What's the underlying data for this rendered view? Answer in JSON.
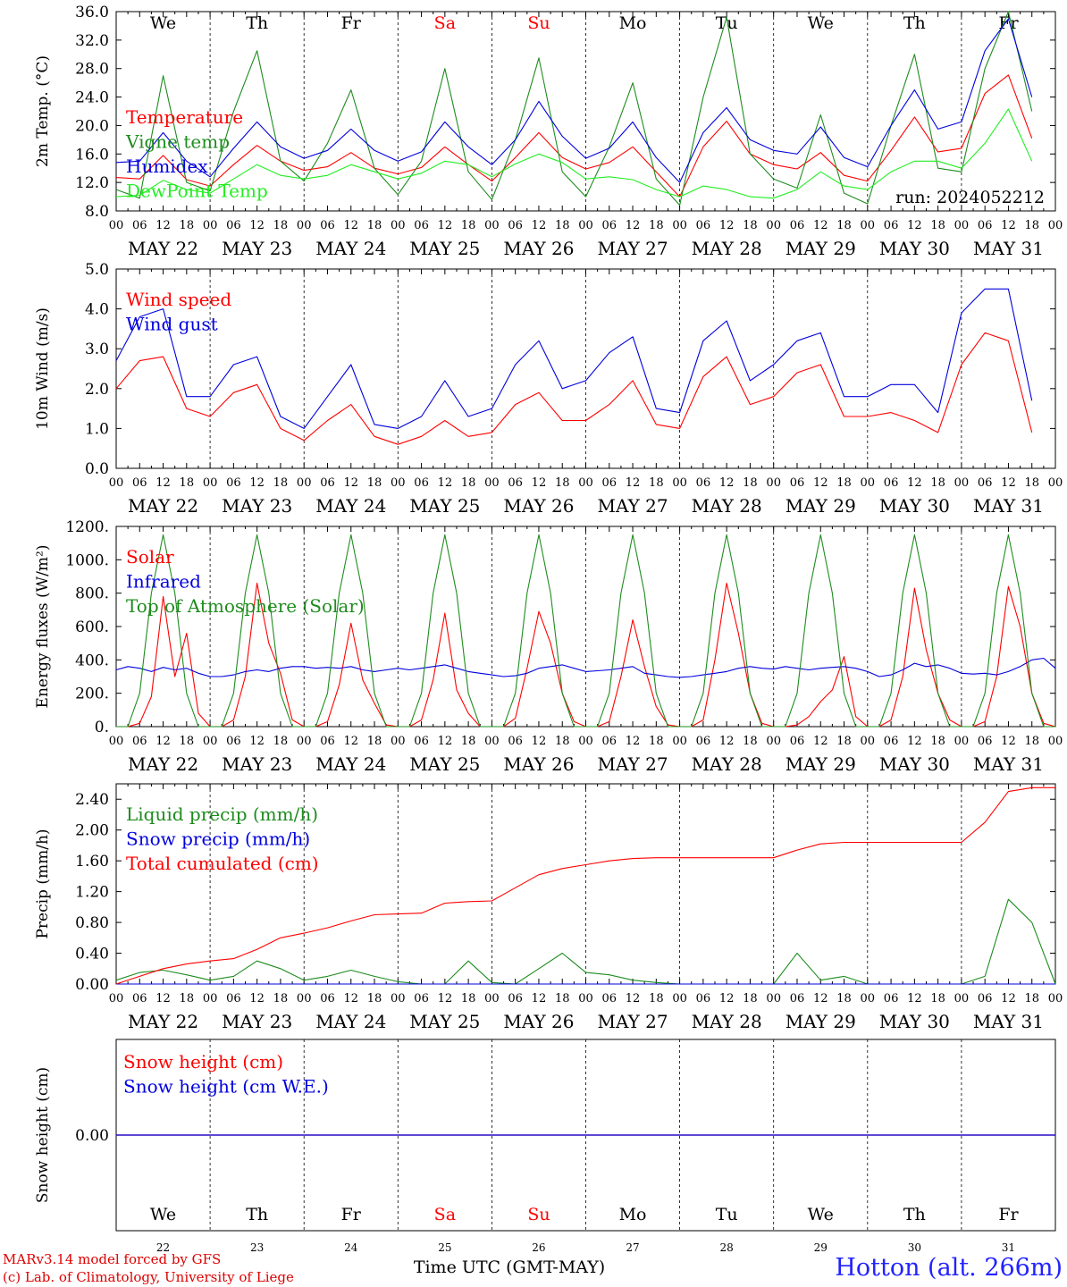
{
  "run_label": "run: 2024052212",
  "credits": [
    "MARv3.14 model forced by GFS",
    "(c) Lab. of Climatology, University of Liege"
  ],
  "station": "Hotton (alt. 266m)",
  "time_axis_label": "Time UTC (GMT-MAY)",
  "hour_ticks": [
    "00",
    "06",
    "12",
    "18"
  ],
  "final_tick": "00",
  "dates": [
    "MAY 22",
    "MAY 23",
    "MAY 24",
    "MAY 25",
    "MAY 26",
    "MAY 27",
    "MAY 28",
    "MAY 29",
    "MAY 30",
    "MAY 31"
  ],
  "day_numbers": [
    "22",
    "23",
    "24",
    "25",
    "26",
    "27",
    "28",
    "29",
    "30",
    "31"
  ],
  "weekdays": [
    {
      "label": "We",
      "color": "#000000"
    },
    {
      "label": "Th",
      "color": "#000000"
    },
    {
      "label": "Fr",
      "color": "#000000"
    },
    {
      "label": "Sa",
      "color": "#ff0000"
    },
    {
      "label": "Su",
      "color": "#ff0000"
    },
    {
      "label": "Mo",
      "color": "#000000"
    },
    {
      "label": "Tu",
      "color": "#000000"
    },
    {
      "label": "We",
      "color": "#000000"
    },
    {
      "label": "Th",
      "color": "#000000"
    },
    {
      "label": "Fr",
      "color": "#000000"
    }
  ],
  "chart_data": [
    {
      "type": "line",
      "ylabel": "2m Temp. (°C)",
      "ylim": [
        8,
        36
      ],
      "yticks": [
        "8.0",
        "12.0",
        "16.0",
        "20.0",
        "24.0",
        "28.0",
        "32.0",
        "36.0"
      ],
      "legend_placement": "top-left",
      "x_hours": [
        0,
        6,
        12,
        18,
        24,
        30,
        36,
        42,
        48,
        54,
        60,
        66,
        72,
        78,
        84,
        90,
        96,
        102,
        108,
        114,
        120,
        126,
        132,
        138,
        144,
        150,
        156,
        162,
        168,
        174,
        180,
        186,
        192,
        198,
        204,
        210,
        216,
        222,
        228,
        234
      ],
      "series": [
        {
          "name": "Temperature",
          "color": "#ff0000",
          "values": [
            12.7,
            12.5,
            15.8,
            12.4,
            11.5,
            14.5,
            17.2,
            15,
            13.7,
            14.2,
            16.2,
            14,
            13.2,
            14.1,
            17,
            14.5,
            12.2,
            15.5,
            19,
            15.5,
            13.9,
            14.8,
            17,
            13.5,
            10,
            17,
            20.6,
            16,
            14.5,
            13.9,
            16.2,
            13,
            12.2,
            16.5,
            21.2,
            16.3,
            16.8,
            24.5,
            27.1,
            18.2
          ]
        },
        {
          "name": "Vigne temp",
          "color": "#1e8c1e",
          "values": [
            11,
            9.8,
            27,
            12,
            10.8,
            22,
            30.5,
            15,
            12.2,
            17.5,
            25,
            14,
            10.3,
            15,
            28,
            13.5,
            9.6,
            18,
            29.5,
            13.5,
            10,
            17,
            26,
            12.5,
            8.8,
            24,
            35.2,
            16,
            12.5,
            11.2,
            21.5,
            10.5,
            9,
            20,
            30,
            14,
            13.5,
            28,
            36,
            22
          ]
        },
        {
          "name": "Humidex",
          "color": "#0000dd",
          "values": [
            14.8,
            15,
            19,
            15,
            12.8,
            16.8,
            20.5,
            17,
            15.4,
            16.5,
            19.5,
            16.5,
            15,
            16.3,
            20.5,
            17,
            14.5,
            18,
            23.4,
            18.5,
            15.4,
            16.8,
            20.5,
            15.5,
            12,
            19,
            22.5,
            18,
            16.5,
            16,
            19.8,
            15.5,
            14.2,
            20,
            25,
            19.5,
            20.5,
            30.5,
            35,
            24
          ]
        },
        {
          "name": "DewPoint Temp",
          "color": "#22ee22",
          "values": [
            10,
            10.2,
            12.3,
            11,
            10.5,
            12.5,
            14.5,
            13,
            12.5,
            13,
            14.5,
            13.5,
            12.5,
            13.3,
            15,
            14.5,
            12.8,
            14.6,
            16,
            14.8,
            12.5,
            12.8,
            12.4,
            11,
            10,
            11.5,
            11,
            10,
            9.8,
            11,
            13.5,
            11.5,
            11,
            13.5,
            15,
            15,
            14,
            17.5,
            22.3,
            15
          ]
        }
      ]
    },
    {
      "type": "line",
      "ylabel": "10m Wind (m/s)",
      "ylim": [
        0,
        5
      ],
      "yticks": [
        "0.0",
        "1.0",
        "2.0",
        "3.0",
        "4.0",
        "5.0"
      ],
      "legend_placement": "top-left",
      "x_hours": [
        0,
        6,
        12,
        18,
        24,
        30,
        36,
        42,
        48,
        54,
        60,
        66,
        72,
        78,
        84,
        90,
        96,
        102,
        108,
        114,
        120,
        126,
        132,
        138,
        144,
        150,
        156,
        162,
        168,
        174,
        180,
        186,
        192,
        198,
        204,
        210,
        216,
        222,
        228,
        234
      ],
      "series": [
        {
          "name": "Wind speed",
          "color": "#ff0000",
          "values": [
            2,
            2.7,
            2.8,
            1.5,
            1.3,
            1.9,
            2.1,
            1,
            0.7,
            1.2,
            1.6,
            0.8,
            0.6,
            0.8,
            1.2,
            0.8,
            0.9,
            1.6,
            1.9,
            1.2,
            1.2,
            1.6,
            2.2,
            1.1,
            1,
            2.3,
            2.8,
            1.6,
            1.8,
            2.4,
            2.6,
            1.3,
            1.3,
            1.4,
            1.2,
            0.9,
            2.6,
            3.4,
            3.2,
            0.9
          ]
        },
        {
          "name": "Wind gust",
          "color": "#0000dd",
          "values": [
            2.7,
            3.8,
            4,
            1.8,
            1.8,
            2.6,
            2.8,
            1.3,
            1,
            1.8,
            2.6,
            1.1,
            1,
            1.3,
            2.2,
            1.3,
            1.5,
            2.6,
            3.2,
            2,
            2.2,
            2.9,
            3.3,
            1.5,
            1.4,
            3.2,
            3.7,
            2.2,
            2.6,
            3.2,
            3.4,
            1.8,
            1.8,
            2.1,
            2.1,
            1.4,
            3.9,
            4.5,
            4.5,
            1.7
          ]
        }
      ]
    },
    {
      "type": "line",
      "ylabel": "Energy fluxes (W/m²)",
      "ylim": [
        0,
        1200
      ],
      "yticks": [
        "0.",
        "200.",
        "400.",
        "600.",
        "800.",
        "1000.",
        "1200."
      ],
      "legend_placement": "top-left",
      "x_hours": [
        0,
        3,
        6,
        9,
        12,
        15,
        18,
        21,
        24,
        27,
        30,
        33,
        36,
        39,
        42,
        45,
        48,
        51,
        54,
        57,
        60,
        63,
        66,
        69,
        72,
        75,
        78,
        81,
        84,
        87,
        90,
        93,
        96,
        99,
        102,
        105,
        108,
        111,
        114,
        117,
        120,
        123,
        126,
        129,
        132,
        135,
        138,
        141,
        144,
        147,
        150,
        153,
        156,
        159,
        162,
        165,
        168,
        171,
        174,
        177,
        180,
        183,
        186,
        189,
        192,
        195,
        198,
        201,
        204,
        207,
        210,
        213,
        216,
        219,
        222,
        225,
        228,
        231,
        234,
        237,
        240
      ],
      "series": [
        {
          "name": "Solar",
          "color": "#ff0000",
          "values": [
            0,
            0,
            20,
            180,
            780,
            300,
            560,
            80,
            0,
            0,
            40,
            300,
            860,
            500,
            320,
            40,
            0,
            0,
            30,
            250,
            620,
            280,
            140,
            10,
            0,
            0,
            40,
            280,
            680,
            220,
            80,
            0,
            0,
            0,
            50,
            350,
            690,
            500,
            200,
            30,
            0,
            0,
            30,
            300,
            640,
            360,
            120,
            10,
            0,
            0,
            40,
            400,
            860,
            560,
            200,
            20,
            0,
            0,
            10,
            60,
            150,
            220,
            420,
            60,
            0,
            0,
            40,
            300,
            830,
            460,
            200,
            40,
            0,
            0,
            30,
            300,
            840,
            600,
            200,
            20,
            0
          ]
        },
        {
          "name": "Infrared",
          "color": "#0000dd",
          "values": [
            340,
            360,
            350,
            330,
            355,
            340,
            350,
            320,
            300,
            300,
            310,
            330,
            340,
            330,
            350,
            360,
            360,
            350,
            355,
            350,
            360,
            340,
            330,
            340,
            350,
            340,
            350,
            360,
            370,
            350,
            330,
            320,
            310,
            300,
            305,
            320,
            350,
            360,
            370,
            350,
            330,
            335,
            340,
            350,
            360,
            320,
            310,
            300,
            295,
            300,
            310,
            320,
            330,
            350,
            360,
            350,
            345,
            360,
            350,
            340,
            350,
            355,
            360,
            350,
            330,
            300,
            310,
            340,
            380,
            360,
            370,
            350,
            320,
            315,
            320,
            310,
            330,
            360,
            400,
            410,
            350
          ]
        },
        {
          "name": "Top of Atmosphere (Solar)",
          "color": "#1e8c1e",
          "values": [
            0,
            0,
            200,
            800,
            1150,
            800,
            200,
            0,
            0,
            0,
            200,
            800,
            1150,
            800,
            200,
            0,
            0,
            0,
            200,
            800,
            1150,
            800,
            200,
            0,
            0,
            0,
            200,
            800,
            1150,
            800,
            200,
            0,
            0,
            0,
            200,
            800,
            1150,
            800,
            200,
            0,
            0,
            0,
            200,
            800,
            1150,
            800,
            200,
            0,
            0,
            0,
            200,
            800,
            1150,
            800,
            200,
            0,
            0,
            0,
            200,
            800,
            1150,
            800,
            200,
            0,
            0,
            0,
            200,
            800,
            1150,
            800,
            200,
            0,
            0,
            0,
            200,
            800,
            1150,
            800,
            200,
            0,
            0
          ]
        }
      ]
    },
    {
      "type": "line",
      "ylabel": "Precip (mm/h)",
      "ylim": [
        0,
        2.6
      ],
      "yticks": [
        "0.00",
        "0.40",
        "0.80",
        "1.20",
        "1.60",
        "2.00",
        "2.40"
      ],
      "legend_placement": "top-left",
      "x_hours": [
        0,
        6,
        12,
        18,
        24,
        30,
        36,
        42,
        48,
        54,
        60,
        66,
        72,
        78,
        84,
        90,
        96,
        102,
        108,
        114,
        120,
        126,
        132,
        138,
        144,
        150,
        156,
        162,
        168,
        174,
        180,
        186,
        192,
        198,
        204,
        210,
        216,
        222,
        228,
        234,
        240
      ],
      "series": [
        {
          "name": "Liquid precip (mm/h)",
          "color": "#1e8c1e",
          "values": [
            0.05,
            0.15,
            0.18,
            0.12,
            0.05,
            0.1,
            0.3,
            0.2,
            0.05,
            0.1,
            0.18,
            0.1,
            0.03,
            0,
            0,
            0.3,
            0.02,
            0,
            0.2,
            0.4,
            0.15,
            0.12,
            0.05,
            0.02,
            0,
            0,
            0,
            0,
            0,
            0.4,
            0.05,
            0.1,
            0,
            0,
            0,
            0,
            0,
            0.1,
            1.1,
            0.8,
            0
          ]
        },
        {
          "name": "Snow precip (mm/h)",
          "color": "#0000dd",
          "values": [
            0,
            0,
            0,
            0,
            0,
            0,
            0,
            0,
            0,
            0,
            0,
            0,
            0,
            0,
            0,
            0,
            0,
            0,
            0,
            0,
            0,
            0,
            0,
            0,
            0,
            0,
            0,
            0,
            0,
            0,
            0,
            0,
            0,
            0,
            0,
            0,
            0,
            0,
            0,
            0,
            0
          ]
        },
        {
          "name": "Total cumulated (cm)",
          "color": "#ff0000",
          "values": [
            0,
            0.1,
            0.2,
            0.26,
            0.3,
            0.33,
            0.45,
            0.6,
            0.66,
            0.73,
            0.82,
            0.9,
            0.91,
            0.92,
            1.05,
            1.07,
            1.08,
            1.25,
            1.42,
            1.5,
            1.55,
            1.6,
            1.63,
            1.64,
            1.64,
            1.64,
            1.64,
            1.64,
            1.64,
            1.74,
            1.82,
            1.84,
            1.84,
            1.84,
            1.84,
            1.84,
            1.84,
            2.1,
            2.5,
            2.55,
            2.55
          ]
        }
      ]
    },
    {
      "type": "line",
      "ylabel": "Snow height (cm)",
      "ylim": [
        -1,
        1
      ],
      "yticks": [
        "0.00"
      ],
      "legend_placement": "top-left",
      "x_hours": [
        0,
        240
      ],
      "series": [
        {
          "name": "Snow height (cm)",
          "color": "#ff0000",
          "values": [
            0,
            0
          ]
        },
        {
          "name": "Snow height (cm W.E.)",
          "color": "#0000dd",
          "values": [
            0,
            0
          ]
        }
      ]
    }
  ]
}
